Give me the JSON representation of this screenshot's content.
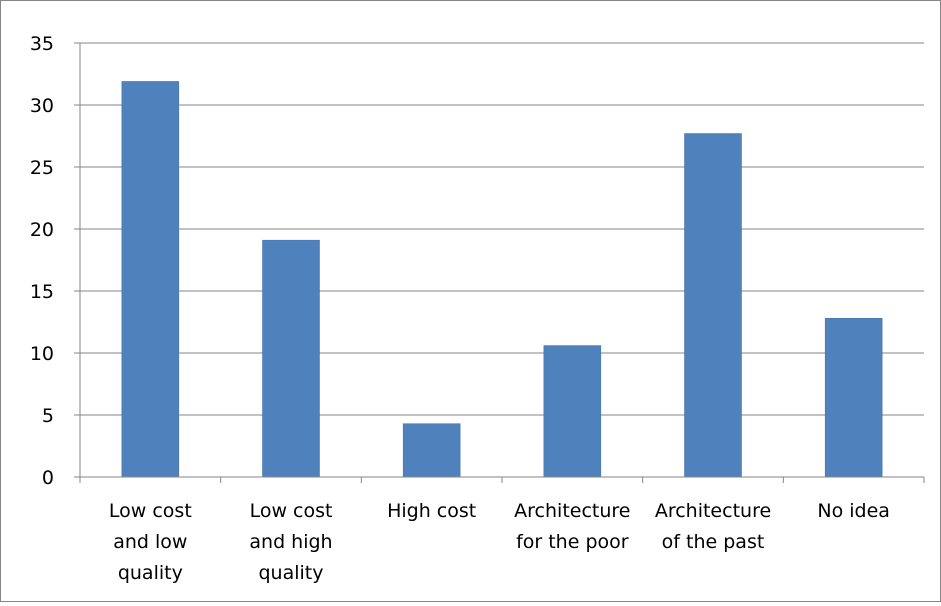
{
  "colors": {
    "bar": "#4f81bd",
    "bar_edge": "#3f6da6",
    "gridline": "#868686",
    "axis": "#868686",
    "frame": "#868686",
    "text": "#000000"
  },
  "chart_data": {
    "type": "bar",
    "title": "",
    "xlabel": "",
    "ylabel": "",
    "categories": [
      [
        "Low cost",
        "and low",
        "quality"
      ],
      [
        "Low cost",
        "and high",
        "quality"
      ],
      [
        "High cost"
      ],
      [
        "Architecture",
        "for the poor"
      ],
      [
        "Architecture",
        "of the past"
      ],
      [
        "No idea"
      ]
    ],
    "values": [
      31.9,
      19.1,
      4.3,
      10.6,
      27.7,
      12.8
    ],
    "ylim": [
      0,
      35
    ],
    "yticks": [
      "0",
      "5",
      "10",
      "15",
      "20",
      "25",
      "30",
      "35"
    ],
    "grid": true,
    "legend": "none"
  }
}
